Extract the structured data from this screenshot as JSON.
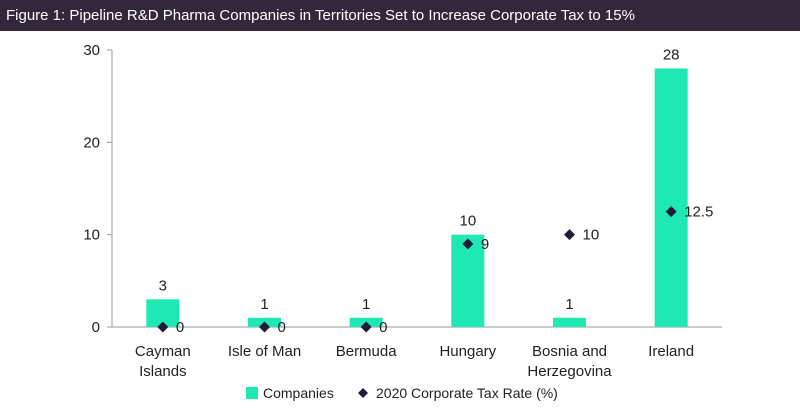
{
  "title": "Figure 1: Pipeline R&D Pharma Companies in Territories Set to Increase Corporate Tax to 15%",
  "colors": {
    "title_bg": "#32283a",
    "bars": "#1ee8b4",
    "markers": "#1d1d3a",
    "axis": "#999999"
  },
  "chart_data": {
    "type": "bar",
    "title": "Figure 1: Pipeline R&D Pharma Companies in Territories Set to Increase Corporate Tax to 15%",
    "categories": [
      [
        "Cayman",
        "Islands"
      ],
      [
        "Isle of Man"
      ],
      [
        "Bermuda"
      ],
      [
        "Hungary"
      ],
      [
        "Bosnia and",
        "Herzegovina"
      ],
      [
        "Ireland"
      ]
    ],
    "series": [
      {
        "name": "Companies",
        "kind": "bar",
        "values": [
          3,
          1,
          1,
          10,
          1,
          28
        ]
      },
      {
        "name": "2020 Corporate Tax Rate (%)",
        "kind": "marker-diamond",
        "values": [
          0,
          0,
          0,
          9,
          10,
          12.5
        ]
      }
    ],
    "ylim": [
      0,
      30
    ],
    "yticks": [
      0,
      10,
      20,
      30
    ],
    "grid": false,
    "legend": "bottom"
  }
}
